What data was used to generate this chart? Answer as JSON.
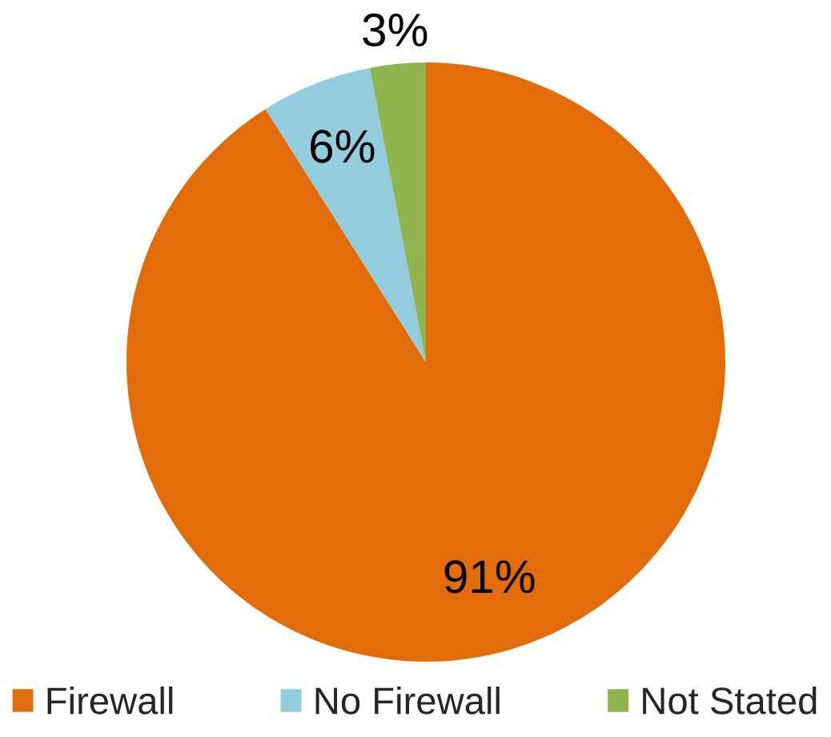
{
  "chart_data": {
    "type": "pie",
    "categories": [
      "Firewall",
      "No Firewall",
      "Not Stated"
    ],
    "values": [
      91,
      6,
      3
    ],
    "colors": [
      "#e36c0a",
      "#93cddd",
      "#8fb34f"
    ],
    "value_labels": [
      "91%",
      "6%",
      "3%"
    ],
    "legend": "bottom"
  }
}
